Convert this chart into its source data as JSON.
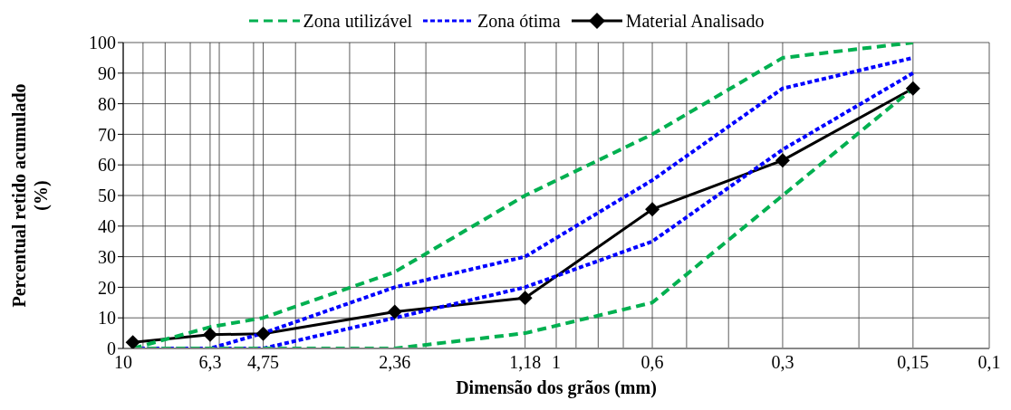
{
  "chart_data": {
    "type": "line",
    "xlabel": "Dimensão dos grãos (mm)",
    "ylabel": "Percentual retido acumulado (%)",
    "log": "x",
    "x": [
      9.5,
      6.3,
      4.75,
      2.36,
      1.18,
      0.6,
      0.3,
      0.15
    ],
    "xlim": [
      10,
      0.1
    ],
    "xticks": [
      {
        "value": 10,
        "label": "10"
      },
      {
        "value": 9,
        "label": null
      },
      {
        "value": 8,
        "label": null
      },
      {
        "value": 7,
        "label": null
      },
      {
        "value": 6.3,
        "label": "6,3"
      },
      {
        "value": 6,
        "label": null
      },
      {
        "value": 5,
        "label": null
      },
      {
        "value": 4.75,
        "label": "4,75"
      },
      {
        "value": 4,
        "label": null
      },
      {
        "value": 3,
        "label": null
      },
      {
        "value": 2.36,
        "label": "2,36"
      },
      {
        "value": 2,
        "label": null
      },
      {
        "value": 1.18,
        "label": "1,18"
      },
      {
        "value": 1,
        "label": "1"
      },
      {
        "value": 0.9,
        "label": null
      },
      {
        "value": 0.8,
        "label": null
      },
      {
        "value": 0.7,
        "label": null
      },
      {
        "value": 0.6,
        "label": "0,6"
      },
      {
        "value": 0.5,
        "label": null
      },
      {
        "value": 0.4,
        "label": null
      },
      {
        "value": 0.3,
        "label": "0,3"
      },
      {
        "value": 0.2,
        "label": null
      },
      {
        "value": 0.15,
        "label": "0,15"
      },
      {
        "value": 0.1,
        "label": "0,1"
      }
    ],
    "ylim": [
      0,
      100
    ],
    "yticks": [
      0,
      10,
      20,
      30,
      40,
      50,
      60,
      70,
      80,
      90,
      100
    ],
    "grid": true,
    "legend": "top",
    "series": [
      {
        "name": "Zona utilizável",
        "color": "#00b050",
        "line_style": "dashed",
        "marker": "none",
        "values": [
          0,
          7,
          10,
          25,
          50,
          70,
          95,
          100
        ]
      },
      {
        "color": "#00b050",
        "line_style": "dashed",
        "marker": "none",
        "values": [
          0,
          0,
          0,
          0,
          5,
          15,
          50,
          85
        ]
      },
      {
        "name": "Zona ótima",
        "color": "#0000ff",
        "line_style": "dotted",
        "marker": "none",
        "values": [
          0,
          0,
          5,
          20,
          30,
          55,
          85,
          95
        ]
      },
      {
        "color": "#0000ff",
        "line_style": "dotted",
        "marker": "none",
        "values": [
          0,
          0,
          0,
          10,
          20,
          35,
          65,
          90
        ]
      },
      {
        "name": "Material Analisado",
        "color": "#000000",
        "line_style": "solid",
        "marker": "diamond",
        "values": [
          2,
          4.5,
          4.8,
          12,
          16.5,
          45.5,
          61.5,
          85
        ]
      }
    ]
  }
}
